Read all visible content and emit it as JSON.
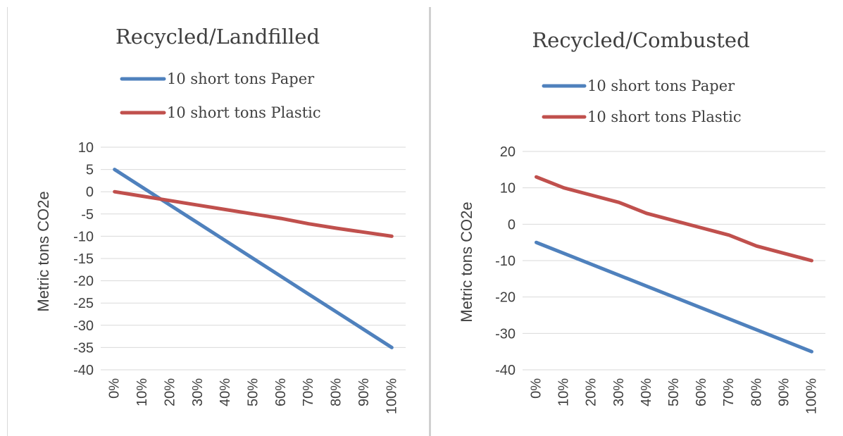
{
  "chart_data": [
    {
      "type": "line",
      "title": "Recycled/Landfilled",
      "xlabel": "",
      "ylabel": "Metric tons CO2e",
      "categories": [
        "0%",
        "10%",
        "20%",
        "30%",
        "40%",
        "50%",
        "60%",
        "70%",
        "80%",
        "90%",
        "100%"
      ],
      "ylim": [
        -40,
        10
      ],
      "yticks": [
        10,
        5,
        0,
        -5,
        -10,
        -15,
        -20,
        -25,
        -30,
        -35,
        -40
      ],
      "grid": true,
      "legend": "top",
      "series": [
        {
          "name": "10 short tons Paper",
          "color": "#4f81bd",
          "values": [
            5,
            1,
            -3,
            -7,
            -11,
            -15,
            -19,
            -23,
            -27,
            -31,
            -35
          ]
        },
        {
          "name": "10 short tons Plastic",
          "color": "#c0504d",
          "values": [
            0,
            -1,
            -2,
            -3,
            -4,
            -5,
            -6,
            -7.2,
            -8.2,
            -9.1,
            -10
          ]
        }
      ]
    },
    {
      "type": "line",
      "title": "Recycled/Combusted",
      "xlabel": "",
      "ylabel": "Metric tons CO2e",
      "categories": [
        "0%",
        "10%",
        "20%",
        "30%",
        "40%",
        "50%",
        "60%",
        "70%",
        "80%",
        "90%",
        "100%"
      ],
      "ylim": [
        -40,
        20
      ],
      "yticks": [
        20,
        10,
        0,
        -10,
        -20,
        -30,
        -40
      ],
      "grid": true,
      "legend": "top",
      "series": [
        {
          "name": "10 short tons Paper",
          "color": "#4f81bd",
          "values": [
            -5,
            -8,
            -11,
            -14,
            -17,
            -20,
            -23,
            -26,
            -29,
            -32,
            -35
          ]
        },
        {
          "name": "10 short tons Plastic",
          "color": "#c0504d",
          "values": [
            13,
            10,
            8,
            6,
            3,
            1,
            -1,
            -3,
            -6,
            -8,
            -10
          ]
        }
      ]
    }
  ]
}
